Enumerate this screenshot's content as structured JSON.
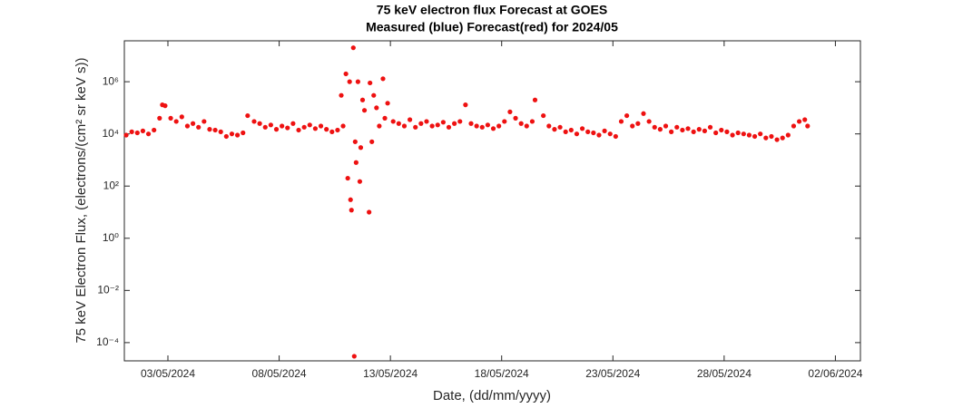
{
  "chart_data": {
    "type": "scatter",
    "title": "75 keV electron flux Forecast at GOES",
    "subtitle": "Measured (blue) Forecast(red) for 2024/05",
    "x_label": "Date, (dd/mm/yyyy)",
    "y_label": "75 keV Electron Flux, (electrons/(cm² sr keV s))",
    "log_y": true,
    "color": "#ee1111",
    "xlim": [
      "2024-05-01T01:00",
      "2024-06-03T03:00"
    ],
    "xticks": [
      {
        "value": "2024-05-03T00:00",
        "label": "03/05/2024"
      },
      {
        "value": "2024-05-08T00:00",
        "label": "08/05/2024"
      },
      {
        "value": "2024-05-13T00:00",
        "label": "13/05/2024"
      },
      {
        "value": "2024-05-18T00:00",
        "label": "18/05/2024"
      },
      {
        "value": "2024-05-23T00:00",
        "label": "23/05/2024"
      },
      {
        "value": "2024-05-28T00:00",
        "label": "28/05/2024"
      },
      {
        "value": "2024-06-02T00:00",
        "label": "02/06/2024"
      }
    ],
    "ylim": [
      2e-05,
      37000000
    ],
    "yticks": [
      {
        "value": 0.0001,
        "label": "10⁻⁴"
      },
      {
        "value": 0.01,
        "label": "10⁻²"
      },
      {
        "value": 1,
        "label": "10⁰"
      },
      {
        "value": 100,
        "label": "10²"
      },
      {
        "value": 10000,
        "label": "10⁴"
      },
      {
        "value": 1000000,
        "label": "10⁶"
      }
    ],
    "x": [
      "2024-05-01T03:00",
      "2024-05-01T09:00",
      "2024-05-01T15:00",
      "2024-05-01T21:00",
      "2024-05-02T03:00",
      "2024-05-02T09:00",
      "2024-05-02T15:00",
      "2024-05-02T18:00",
      "2024-05-02T21:00",
      "2024-05-03T03:00",
      "2024-05-03T09:00",
      "2024-05-03T15:00",
      "2024-05-03T21:00",
      "2024-05-04T03:00",
      "2024-05-04T09:00",
      "2024-05-04T15:00",
      "2024-05-04T21:00",
      "2024-05-05T03:00",
      "2024-05-05T09:00",
      "2024-05-05T15:00",
      "2024-05-05T21:00",
      "2024-05-06T03:00",
      "2024-05-06T09:00",
      "2024-05-06T14:00",
      "2024-05-06T21:00",
      "2024-05-07T03:00",
      "2024-05-07T09:00",
      "2024-05-07T15:00",
      "2024-05-07T21:00",
      "2024-05-08T03:00",
      "2024-05-08T09:00",
      "2024-05-08T15:00",
      "2024-05-08T21:00",
      "2024-05-09T03:00",
      "2024-05-09T09:00",
      "2024-05-09T15:00",
      "2024-05-09T21:00",
      "2024-05-10T03:00",
      "2024-05-10T09:00",
      "2024-05-10T15:00",
      "2024-05-10T19:00",
      "2024-05-10T21:00",
      "2024-05-11T00:00",
      "2024-05-11T02:00",
      "2024-05-11T04:00",
      "2024-05-11T05:00",
      "2024-05-11T06:00",
      "2024-05-11T08:00",
      "2024-05-11T09:00",
      "2024-05-11T10:00",
      "2024-05-11T11:00",
      "2024-05-11T13:00",
      "2024-05-11T15:00",
      "2024-05-11T16:00",
      "2024-05-11T18:00",
      "2024-05-11T20:00",
      "2024-05-12T01:00",
      "2024-05-12T02:00",
      "2024-05-12T04:00",
      "2024-05-12T06:00",
      "2024-05-12T09:00",
      "2024-05-12T12:00",
      "2024-05-12T16:00",
      "2024-05-12T18:00",
      "2024-05-12T21:00",
      "2024-05-13T03:00",
      "2024-05-13T09:00",
      "2024-05-13T15:00",
      "2024-05-13T21:00",
      "2024-05-14T03:00",
      "2024-05-14T09:00",
      "2024-05-14T15:00",
      "2024-05-14T21:00",
      "2024-05-15T03:00",
      "2024-05-15T09:00",
      "2024-05-15T15:00",
      "2024-05-15T21:00",
      "2024-05-16T03:00",
      "2024-05-16T09:00",
      "2024-05-16T15:00",
      "2024-05-16T21:00",
      "2024-05-17T03:00",
      "2024-05-17T09:00",
      "2024-05-17T15:00",
      "2024-05-17T21:00",
      "2024-05-18T03:00",
      "2024-05-18T09:00",
      "2024-05-18T15:00",
      "2024-05-18T21:00",
      "2024-05-19T03:00",
      "2024-05-19T09:00",
      "2024-05-19T12:00",
      "2024-05-19T21:00",
      "2024-05-20T03:00",
      "2024-05-20T09:00",
      "2024-05-20T15:00",
      "2024-05-20T21:00",
      "2024-05-21T03:00",
      "2024-05-21T09:00",
      "2024-05-21T15:00",
      "2024-05-21T21:00",
      "2024-05-22T03:00",
      "2024-05-22T09:00",
      "2024-05-22T15:00",
      "2024-05-22T21:00",
      "2024-05-23T03:00",
      "2024-05-23T09:00",
      "2024-05-23T15:00",
      "2024-05-23T21:00",
      "2024-05-24T03:00",
      "2024-05-24T09:00",
      "2024-05-24T15:00",
      "2024-05-24T21:00",
      "2024-05-25T03:00",
      "2024-05-25T09:00",
      "2024-05-25T15:00",
      "2024-05-25T21:00",
      "2024-05-26T03:00",
      "2024-05-26T09:00",
      "2024-05-26T15:00",
      "2024-05-26T21:00",
      "2024-05-27T03:00",
      "2024-05-27T09:00",
      "2024-05-27T15:00",
      "2024-05-27T21:00",
      "2024-05-28T03:00",
      "2024-05-28T09:00",
      "2024-05-28T15:00",
      "2024-05-28T21:00",
      "2024-05-29T03:00",
      "2024-05-29T09:00",
      "2024-05-29T15:00",
      "2024-05-29T21:00",
      "2024-05-30T03:00",
      "2024-05-30T09:00",
      "2024-05-30T15:00",
      "2024-05-30T21:00",
      "2024-05-31T03:00",
      "2024-05-31T09:00",
      "2024-05-31T15:00",
      "2024-05-31T18:00"
    ],
    "values": [
      9000,
      12000,
      11000,
      13000,
      10000,
      14000,
      40000,
      130000,
      120000,
      40000,
      30000,
      45000,
      20000,
      25000,
      18000,
      30000,
      15000,
      14000,
      12000,
      8000,
      10000,
      9000,
      11000,
      50000,
      30000,
      25000,
      18000,
      22000,
      15000,
      20000,
      17000,
      25000,
      14000,
      18000,
      22000,
      16000,
      20000,
      15000,
      12000,
      14000,
      300000,
      20000,
      2000000,
      200,
      1000000,
      30,
      12,
      20000000,
      3e-05,
      5000,
      800,
      1000000,
      150,
      3000,
      200000,
      80000,
      10,
      900000,
      5000,
      300000,
      100000,
      20000,
      1300000,
      40000,
      150000,
      30000,
      25000,
      20000,
      35000,
      18000,
      25000,
      30000,
      20000,
      22000,
      28000,
      18000,
      25000,
      30000,
      130000,
      25000,
      20000,
      18000,
      22000,
      16000,
      20000,
      30000,
      70000,
      40000,
      25000,
      20000,
      30000,
      200000,
      50000,
      20000,
      15000,
      18000,
      12000,
      14000,
      10000,
      16000,
      12000,
      11000,
      9000,
      13000,
      10000,
      8000,
      30000,
      50000,
      20000,
      25000,
      60000,
      30000,
      18000,
      15000,
      20000,
      12000,
      18000,
      14000,
      16000,
      12000,
      15000,
      13000,
      18000,
      11000,
      14000,
      12000,
      9000,
      11000,
      10000,
      9000,
      8000,
      10000,
      7000,
      8000,
      6000,
      7000,
      9000,
      20000,
      30000,
      35000,
      20000
    ]
  }
}
